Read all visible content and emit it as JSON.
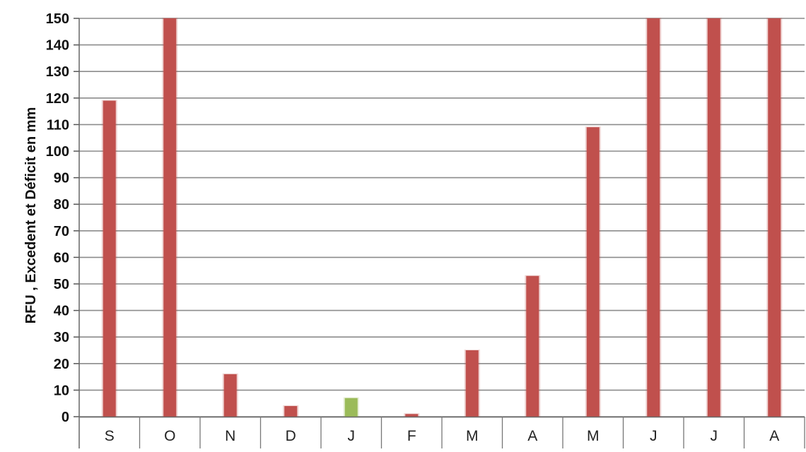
{
  "chart_data": {
    "type": "bar",
    "title": "",
    "xlabel": "",
    "ylabel": "RFU , Excedent et Déficit en mm",
    "categories": [
      "S",
      "O",
      "N",
      "D",
      "J",
      "F",
      "M",
      "A",
      "M",
      "J",
      "J",
      "A"
    ],
    "series": [
      {
        "values": [
          119,
          150,
          16,
          4,
          7,
          1,
          25,
          53,
          109,
          150,
          150,
          150
        ],
        "bar_colors": [
          "#c0504d",
          "#c0504d",
          "#c0504d",
          "#c0504d",
          "#9bbb59",
          "#c0504d",
          "#c0504d",
          "#c0504d",
          "#c0504d",
          "#c0504d",
          "#c0504d",
          "#c0504d"
        ]
      }
    ],
    "ylim": [
      0,
      150
    ],
    "yticks": [
      0,
      10,
      20,
      30,
      40,
      50,
      60,
      70,
      80,
      90,
      100,
      110,
      120,
      130,
      140,
      150
    ],
    "grid": true,
    "legend": "none"
  }
}
